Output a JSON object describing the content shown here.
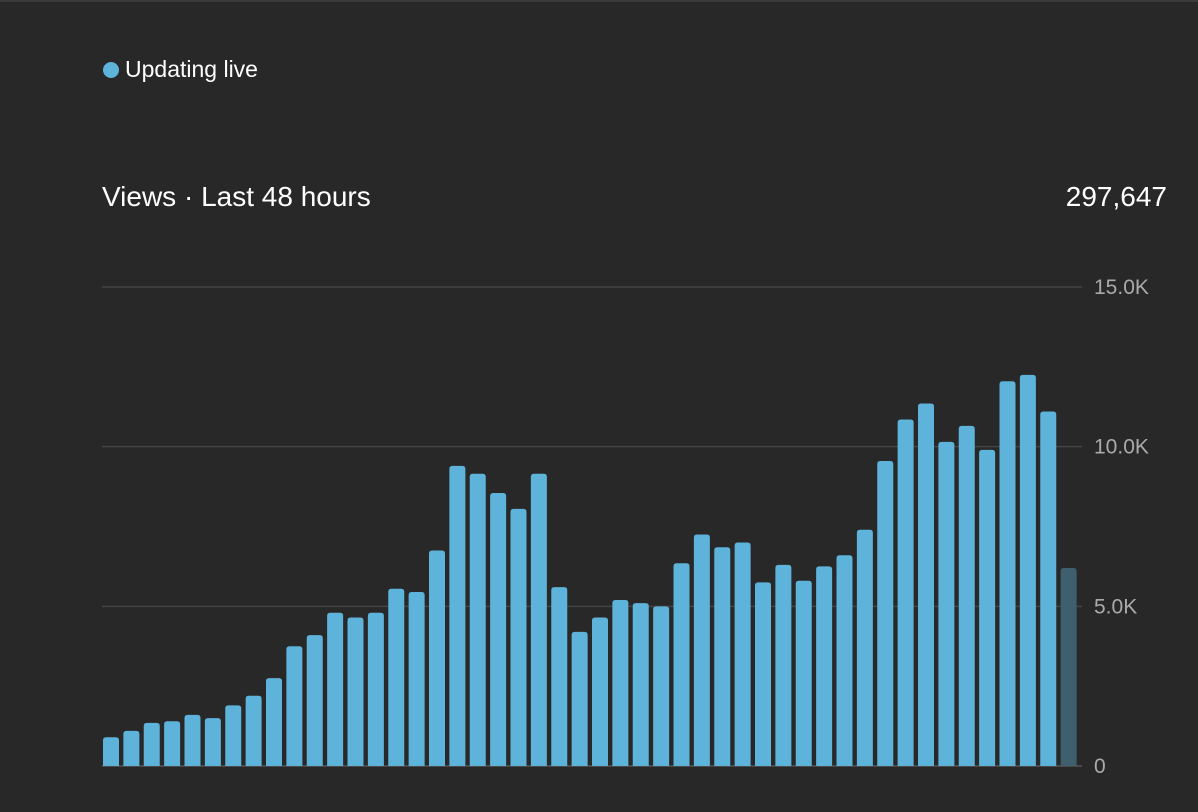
{
  "status": {
    "label": "Updating live"
  },
  "metric": {
    "title": "Views · Last 48 hours",
    "total": "297,647"
  },
  "colors": {
    "background": "#282828",
    "bar": "#5eb3da",
    "bar_current": "#3f5f6e",
    "gridline": "#444444",
    "axis_text": "#aaaaaa",
    "live_dot": "#5eb3da"
  },
  "chart_data": {
    "type": "bar",
    "title": "Views · Last 48 hours",
    "xlabel": "",
    "ylabel": "",
    "ylim": [
      0,
      15000
    ],
    "y_ticks": [
      {
        "value": 0,
        "label": "0"
      },
      {
        "value": 5000,
        "label": "5.0K"
      },
      {
        "value": 10000,
        "label": "10.0K"
      },
      {
        "value": 15000,
        "label": "15.0K"
      }
    ],
    "grid": true,
    "legend": "none",
    "values": [
      900,
      1100,
      1350,
      1400,
      1600,
      1500,
      1900,
      2200,
      2750,
      3750,
      4100,
      4800,
      4650,
      4800,
      5550,
      5450,
      6750,
      9400,
      9150,
      8550,
      8050,
      9150,
      5600,
      4200,
      4650,
      5200,
      5100,
      5000,
      6350,
      7250,
      6850,
      7000,
      5750,
      6300,
      5800,
      6250,
      6600,
      7400,
      9550,
      10850,
      11350,
      10150,
      10650,
      9900,
      12050,
      12250,
      11100,
      6200
    ],
    "current_bar_index": 47
  }
}
